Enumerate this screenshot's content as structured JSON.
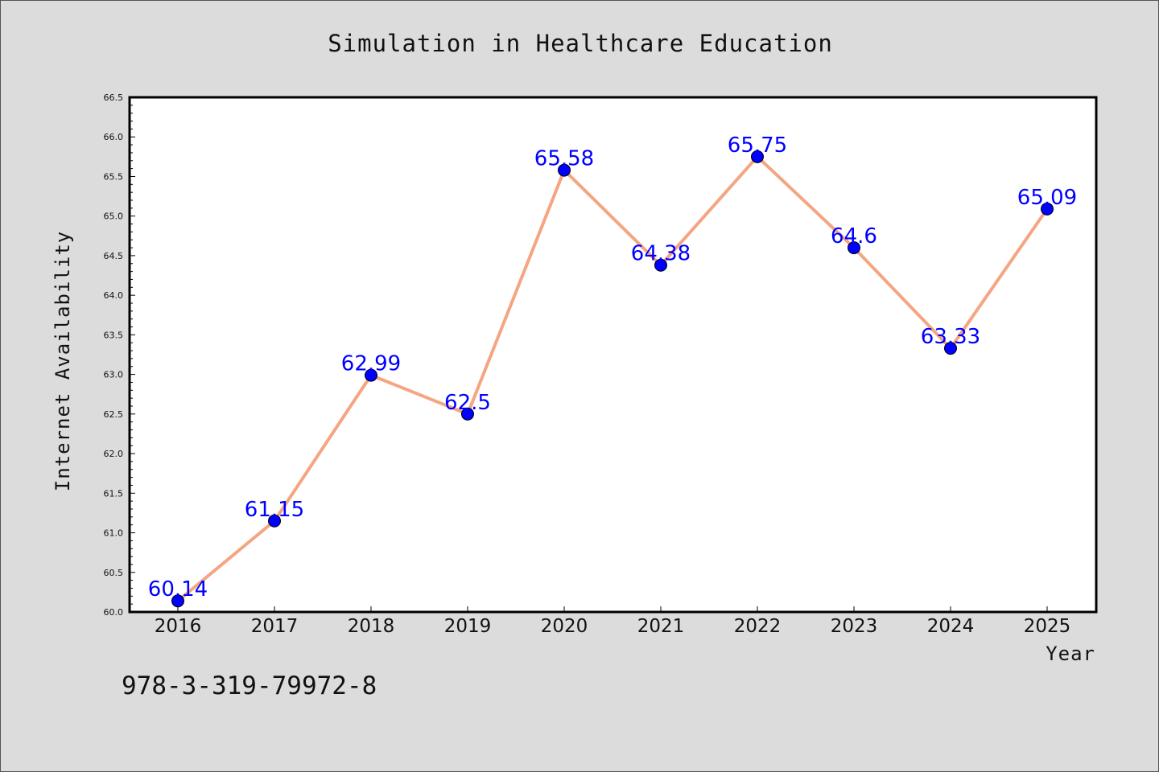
{
  "chart_data": {
    "type": "line",
    "title": "Simulation in Healthcare Education",
    "xlabel": "Year",
    "ylabel": "Internet Availability",
    "x": [
      "2016",
      "2017",
      "2018",
      "2019",
      "2020",
      "2021",
      "2022",
      "2023",
      "2024",
      "2025"
    ],
    "values": [
      60.14,
      61.15,
      62.99,
      62.5,
      65.58,
      64.38,
      65.75,
      64.6,
      63.33,
      65.09
    ],
    "data_labels": [
      "60.14",
      "61.15",
      "62.99",
      "62.5",
      "65.58",
      "64.38",
      "65.75",
      "64.6",
      "63.33",
      "65.09"
    ],
    "ylim": [
      60.0,
      66.5
    ],
    "yticks": [
      "60.0",
      "60.5",
      "61.0",
      "61.5",
      "62.0",
      "62.5",
      "63.0",
      "63.5",
      "64.0",
      "64.5",
      "65.0",
      "65.5",
      "66.0",
      "66.5"
    ],
    "grid": false,
    "line_color": "#f4a582",
    "marker_color": "#0000ff",
    "label_color": "#0000ff"
  },
  "footer": {
    "identifier": "978-3-319-79972-8"
  }
}
